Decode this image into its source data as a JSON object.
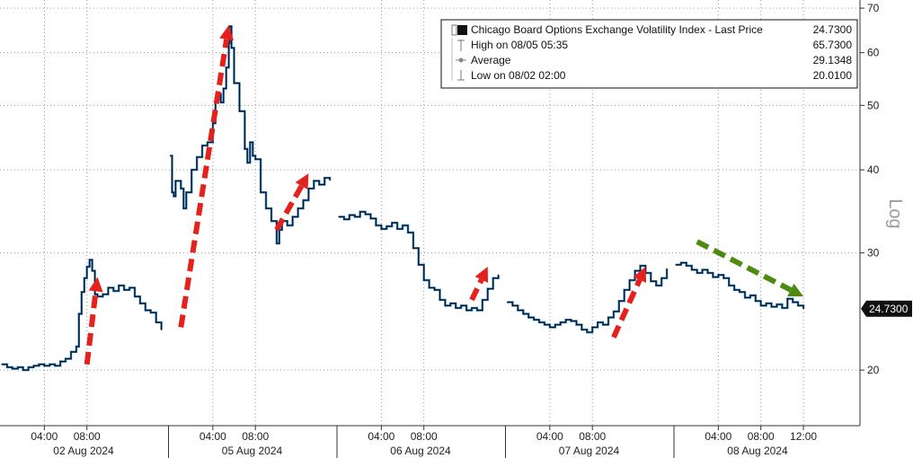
{
  "chart_data": {
    "type": "line",
    "title": "",
    "xlabel": "",
    "ylabel": "Log",
    "y_scale": "log",
    "ylim": [
      16.5,
      72
    ],
    "y_ticks": [
      20,
      30,
      40,
      50,
      60,
      70
    ],
    "grid": true,
    "legend_position": "top-right",
    "colors": {
      "line_black": "#111111",
      "line_blue": "#1f78c8",
      "arrow_red": "#e4211c",
      "arrow_green": "#4f8a10",
      "grid": "#9a9a9a"
    },
    "legend": {
      "entries": [
        {
          "label": "Chicago Board Options Exchange Volatility Index - Last Price",
          "value": "24.7300",
          "marker": "square"
        },
        {
          "label": "High on 08/05 05:35",
          "value": "65.7300",
          "marker": "high"
        },
        {
          "label": "Average",
          "value": "29.1348",
          "marker": "average"
        },
        {
          "label": "Low on 08/02 02:00",
          "value": "20.0100",
          "marker": "low"
        }
      ]
    },
    "last_price_label": "24.7300",
    "last_price": 24.73,
    "days": [
      {
        "label": "02 Aug 2024",
        "hours": [
          {
            "label": "04:00"
          },
          {
            "label": "08:00"
          }
        ]
      },
      {
        "label": "05 Aug 2024",
        "hours": [
          {
            "label": "04:00"
          },
          {
            "label": "08:00"
          }
        ]
      },
      {
        "label": "06 Aug 2024",
        "hours": [
          {
            "label": "04:00"
          },
          {
            "label": "08:00"
          }
        ]
      },
      {
        "label": "07 Aug 2024",
        "hours": [
          {
            "label": "04:00"
          },
          {
            "label": "08:00"
          }
        ]
      },
      {
        "label": "08 Aug 2024",
        "hours": [
          {
            "label": "04:00"
          },
          {
            "label": "08:00"
          },
          {
            "label": "12:00"
          }
        ]
      }
    ],
    "series": [
      {
        "values": [
          [
            "02 Aug 2024",
            "00:00",
            20.4
          ],
          [
            "02 Aug 2024",
            "00:30",
            20.2
          ],
          [
            "02 Aug 2024",
            "01:00",
            20.1
          ],
          [
            "02 Aug 2024",
            "01:30",
            20.2
          ],
          [
            "02 Aug 2024",
            "02:00",
            20.0
          ],
          [
            "02 Aug 2024",
            "02:30",
            20.2
          ],
          [
            "02 Aug 2024",
            "03:00",
            20.3
          ],
          [
            "02 Aug 2024",
            "03:30",
            20.4
          ],
          [
            "02 Aug 2024",
            "04:00",
            20.3
          ],
          [
            "02 Aug 2024",
            "04:30",
            20.4
          ],
          [
            "02 Aug 2024",
            "05:00",
            20.3
          ],
          [
            "02 Aug 2024",
            "05:30",
            20.6
          ],
          [
            "02 Aug 2024",
            "06:00",
            20.8
          ],
          [
            "02 Aug 2024",
            "06:30",
            21.3
          ],
          [
            "02 Aug 2024",
            "07:00",
            21.7
          ],
          [
            "02 Aug 2024",
            "07:15",
            24.3
          ],
          [
            "02 Aug 2024",
            "07:30",
            26.2
          ],
          [
            "02 Aug 2024",
            "07:45",
            27.5
          ],
          [
            "02 Aug 2024",
            "08:00",
            28.6
          ],
          [
            "02 Aug 2024",
            "08:15",
            29.3
          ],
          [
            "02 Aug 2024",
            "08:30",
            28.2
          ],
          [
            "02 Aug 2024",
            "08:45",
            26.0
          ],
          [
            "02 Aug 2024",
            "09:00",
            25.8
          ],
          [
            "02 Aug 2024",
            "09:30",
            26.0
          ],
          [
            "02 Aug 2024",
            "10:00",
            26.6
          ],
          [
            "02 Aug 2024",
            "10:30",
            26.3
          ],
          [
            "02 Aug 2024",
            "11:00",
            26.8
          ],
          [
            "02 Aug 2024",
            "11:30",
            26.4
          ],
          [
            "02 Aug 2024",
            "12:00",
            26.6
          ],
          [
            "02 Aug 2024",
            "12:30",
            25.8
          ],
          [
            "02 Aug 2024",
            "13:00",
            25.2
          ],
          [
            "02 Aug 2024",
            "13:30",
            24.6
          ],
          [
            "02 Aug 2024",
            "14:00",
            24.4
          ],
          [
            "02 Aug 2024",
            "14:30",
            23.6
          ],
          [
            "02 Aug 2024",
            "15:00",
            23.0
          ]
        ]
      },
      {
        "values": [
          [
            "05 Aug 2024",
            "00:00",
            42.0
          ],
          [
            "05 Aug 2024",
            "00:10",
            37.0
          ],
          [
            "05 Aug 2024",
            "00:20",
            36.5
          ],
          [
            "05 Aug 2024",
            "00:30",
            38.5
          ],
          [
            "05 Aug 2024",
            "01:00",
            37.5
          ],
          [
            "05 Aug 2024",
            "01:15",
            35.0
          ],
          [
            "05 Aug 2024",
            "01:30",
            37.0
          ],
          [
            "05 Aug 2024",
            "02:00",
            40.0
          ],
          [
            "05 Aug 2024",
            "02:30",
            41.8
          ],
          [
            "05 Aug 2024",
            "03:00",
            43.5
          ],
          [
            "05 Aug 2024",
            "03:30",
            44.0
          ],
          [
            "05 Aug 2024",
            "04:00",
            47.0
          ],
          [
            "05 Aug 2024",
            "04:15",
            50.5
          ],
          [
            "05 Aug 2024",
            "04:30",
            52.0
          ],
          [
            "05 Aug 2024",
            "04:45",
            50.5
          ],
          [
            "05 Aug 2024",
            "05:00",
            53.0
          ],
          [
            "05 Aug 2024",
            "05:15",
            57.0
          ],
          [
            "05 Aug 2024",
            "05:30",
            62.0
          ],
          [
            "05 Aug 2024",
            "05:35",
            65.73
          ],
          [
            "05 Aug 2024",
            "05:45",
            61.0
          ],
          [
            "05 Aug 2024",
            "06:00",
            54.0
          ],
          [
            "05 Aug 2024",
            "06:30",
            49.0
          ],
          [
            "05 Aug 2024",
            "07:00",
            43.0
          ],
          [
            "05 Aug 2024",
            "07:15",
            41.0
          ],
          [
            "05 Aug 2024",
            "07:30",
            44.0
          ],
          [
            "05 Aug 2024",
            "07:45",
            42.0
          ],
          [
            "05 Aug 2024",
            "08:00",
            41.5
          ],
          [
            "05 Aug 2024",
            "08:30",
            37.0
          ],
          [
            "05 Aug 2024",
            "09:00",
            35.0
          ],
          [
            "05 Aug 2024",
            "09:30",
            33.5
          ],
          [
            "05 Aug 2024",
            "10:00",
            31.0
          ],
          [
            "05 Aug 2024",
            "10:15",
            32.5
          ],
          [
            "05 Aug 2024",
            "10:30",
            33.5
          ],
          [
            "05 Aug 2024",
            "11:00",
            33.0
          ],
          [
            "05 Aug 2024",
            "11:30",
            34.0
          ],
          [
            "05 Aug 2024",
            "12:00",
            35.0
          ],
          [
            "05 Aug 2024",
            "12:30",
            36.0
          ],
          [
            "05 Aug 2024",
            "13:00",
            37.5
          ],
          [
            "05 Aug 2024",
            "13:30",
            38.5
          ],
          [
            "05 Aug 2024",
            "14:00",
            38.0
          ],
          [
            "05 Aug 2024",
            "14:30",
            38.9
          ],
          [
            "05 Aug 2024",
            "15:00",
            38.6
          ]
        ]
      },
      {
        "values": [
          [
            "06 Aug 2024",
            "00:00",
            34.0
          ],
          [
            "06 Aug 2024",
            "00:30",
            33.7
          ],
          [
            "06 Aug 2024",
            "01:00",
            34.2
          ],
          [
            "06 Aug 2024",
            "01:30",
            34.0
          ],
          [
            "06 Aug 2024",
            "02:00",
            34.6
          ],
          [
            "06 Aug 2024",
            "02:30",
            34.3
          ],
          [
            "06 Aug 2024",
            "03:00",
            33.8
          ],
          [
            "06 Aug 2024",
            "03:30",
            33.0
          ],
          [
            "06 Aug 2024",
            "04:00",
            32.6
          ],
          [
            "06 Aug 2024",
            "04:30",
            32.9
          ],
          [
            "06 Aug 2024",
            "05:00",
            33.3
          ],
          [
            "06 Aug 2024",
            "05:30",
            32.6
          ],
          [
            "06 Aug 2024",
            "06:00",
            33.0
          ],
          [
            "06 Aug 2024",
            "06:30",
            32.2
          ],
          [
            "06 Aug 2024",
            "07:00",
            30.5
          ],
          [
            "06 Aug 2024",
            "07:30",
            28.8
          ],
          [
            "06 Aug 2024",
            "08:00",
            27.3
          ],
          [
            "06 Aug 2024",
            "08:30",
            26.6
          ],
          [
            "06 Aug 2024",
            "09:00",
            26.4
          ],
          [
            "06 Aug 2024",
            "09:30",
            25.5
          ],
          [
            "06 Aug 2024",
            "10:00",
            25.0
          ],
          [
            "06 Aug 2024",
            "10:30",
            25.2
          ],
          [
            "06 Aug 2024",
            "11:00",
            24.8
          ],
          [
            "06 Aug 2024",
            "11:30",
            25.0
          ],
          [
            "06 Aug 2024",
            "12:00",
            24.6
          ],
          [
            "06 Aug 2024",
            "12:30",
            24.8
          ],
          [
            "06 Aug 2024",
            "13:00",
            24.6
          ],
          [
            "06 Aug 2024",
            "13:30",
            25.5
          ],
          [
            "06 Aug 2024",
            "14:00",
            26.5
          ],
          [
            "06 Aug 2024",
            "14:30",
            27.5
          ],
          [
            "06 Aug 2024",
            "15:00",
            27.8
          ]
        ]
      },
      {
        "values": [
          [
            "07 Aug 2024",
            "00:00",
            25.3
          ],
          [
            "07 Aug 2024",
            "00:30",
            25.0
          ],
          [
            "07 Aug 2024",
            "01:00",
            24.6
          ],
          [
            "07 Aug 2024",
            "01:30",
            24.3
          ],
          [
            "07 Aug 2024",
            "02:00",
            24.0
          ],
          [
            "07 Aug 2024",
            "02:30",
            23.8
          ],
          [
            "07 Aug 2024",
            "03:00",
            23.6
          ],
          [
            "07 Aug 2024",
            "03:30",
            23.4
          ],
          [
            "07 Aug 2024",
            "04:00",
            23.2
          ],
          [
            "07 Aug 2024",
            "04:30",
            23.4
          ],
          [
            "07 Aug 2024",
            "05:00",
            23.6
          ],
          [
            "07 Aug 2024",
            "05:30",
            23.8
          ],
          [
            "07 Aug 2024",
            "06:00",
            23.7
          ],
          [
            "07 Aug 2024",
            "06:30",
            23.4
          ],
          [
            "07 Aug 2024",
            "07:00",
            23.0
          ],
          [
            "07 Aug 2024",
            "07:30",
            22.8
          ],
          [
            "07 Aug 2024",
            "08:00",
            23.2
          ],
          [
            "07 Aug 2024",
            "08:30",
            23.6
          ],
          [
            "07 Aug 2024",
            "09:00",
            23.4
          ],
          [
            "07 Aug 2024",
            "09:30",
            24.0
          ],
          [
            "07 Aug 2024",
            "10:00",
            24.5
          ],
          [
            "07 Aug 2024",
            "10:30",
            25.4
          ],
          [
            "07 Aug 2024",
            "11:00",
            26.4
          ],
          [
            "07 Aug 2024",
            "11:30",
            27.3
          ],
          [
            "07 Aug 2024",
            "12:00",
            28.2
          ],
          [
            "07 Aug 2024",
            "12:30",
            28.7
          ],
          [
            "07 Aug 2024",
            "13:00",
            28.0
          ],
          [
            "07 Aug 2024",
            "13:30",
            27.2
          ],
          [
            "07 Aug 2024",
            "14:00",
            26.8
          ],
          [
            "07 Aug 2024",
            "14:30",
            27.5
          ],
          [
            "07 Aug 2024",
            "15:00",
            28.4
          ]
        ]
      },
      {
        "values": [
          [
            "08 Aug 2024",
            "00:00",
            28.8
          ],
          [
            "08 Aug 2024",
            "00:30",
            29.0
          ],
          [
            "08 Aug 2024",
            "01:00",
            28.7
          ],
          [
            "08 Aug 2024",
            "01:30",
            28.3
          ],
          [
            "08 Aug 2024",
            "02:00",
            28.0
          ],
          [
            "08 Aug 2024",
            "02:30",
            28.3
          ],
          [
            "08 Aug 2024",
            "03:00",
            28.0
          ],
          [
            "08 Aug 2024",
            "03:30",
            27.6
          ],
          [
            "08 Aug 2024",
            "04:00",
            27.8
          ],
          [
            "08 Aug 2024",
            "04:30",
            27.5
          ],
          [
            "08 Aug 2024",
            "05:00",
            26.8
          ],
          [
            "08 Aug 2024",
            "05:30",
            26.4
          ],
          [
            "08 Aug 2024",
            "06:00",
            26.2
          ],
          [
            "08 Aug 2024",
            "06:30",
            25.7
          ],
          [
            "08 Aug 2024",
            "07:00",
            25.9
          ],
          [
            "08 Aug 2024",
            "07:30",
            25.4
          ],
          [
            "08 Aug 2024",
            "08:00",
            25.0
          ],
          [
            "08 Aug 2024",
            "08:30",
            25.2
          ],
          [
            "08 Aug 2024",
            "09:00",
            24.9
          ],
          [
            "08 Aug 2024",
            "09:30",
            25.1
          ],
          [
            "08 Aug 2024",
            "10:00",
            24.8
          ],
          [
            "08 Aug 2024",
            "10:30",
            25.6
          ],
          [
            "08 Aug 2024",
            "11:00",
            25.3
          ],
          [
            "08 Aug 2024",
            "11:30",
            25.0
          ],
          [
            "08 Aug 2024",
            "12:00",
            24.73
          ]
        ]
      }
    ],
    "annotations": [
      {
        "type": "arrow",
        "color": "red",
        "from": [
          "02 Aug 2024",
          "08:00",
          20.4
        ],
        "to": [
          "02 Aug 2024",
          "09:00",
          27.6
        ]
      },
      {
        "type": "arrow",
        "color": "red",
        "from": [
          "05 Aug 2024",
          "01:00",
          23.2
        ],
        "to": [
          "05 Aug 2024",
          "05:30",
          66.0
        ]
      },
      {
        "type": "arrow",
        "color": "red",
        "from": [
          "05 Aug 2024",
          "10:00",
          32.5
        ],
        "to": [
          "05 Aug 2024",
          "13:00",
          39.5
        ]
      },
      {
        "type": "arrow",
        "color": "red",
        "from": [
          "06 Aug 2024",
          "12:30",
          25.5
        ],
        "to": [
          "06 Aug 2024",
          "14:00",
          28.6
        ]
      },
      {
        "type": "arrow",
        "color": "red",
        "from": [
          "07 Aug 2024",
          "10:00",
          22.4
        ],
        "to": [
          "07 Aug 2024",
          "13:00",
          28.6
        ]
      },
      {
        "type": "arrow",
        "color": "green",
        "from": [
          "08 Aug 2024",
          "02:00",
          31.2
        ],
        "to": [
          "08 Aug 2024",
          "12:00",
          25.8
        ]
      }
    ]
  }
}
